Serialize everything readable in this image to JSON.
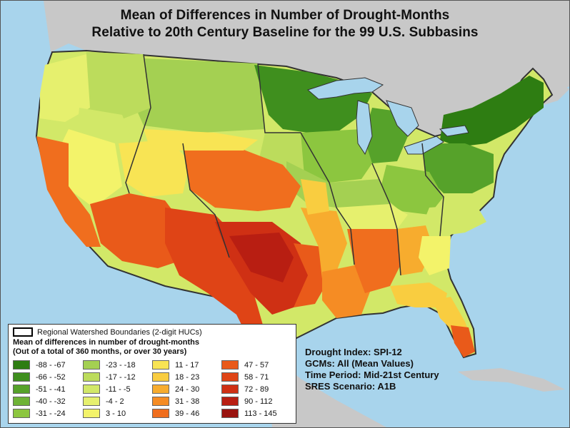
{
  "title_line1": "Mean of Differences in Number of Drought-Months",
  "title_line2": "Relative to 20th Century Baseline for the 99 U.S. Subbasins",
  "legend": {
    "boundary_label": "Regional Watershed Boundaries (2-digit HUCs)",
    "heading1": "Mean of differences in number of drought-months",
    "heading2": "(Out of a total of 360 months, or over 30 years)",
    "classes": [
      {
        "label": "-88 - -67",
        "color": "#2e7d12"
      },
      {
        "label": "-66 - -52",
        "color": "#3f8f1e"
      },
      {
        "label": "-51 - -41",
        "color": "#56a22a"
      },
      {
        "label": "-40 - -32",
        "color": "#6fb337"
      },
      {
        "label": "-31 - -24",
        "color": "#8cc63f"
      },
      {
        "label": "-23 - -18",
        "color": "#a4d052"
      },
      {
        "label": "-17 - -12",
        "color": "#bcdc5c"
      },
      {
        "label": "-11 - -5",
        "color": "#d2e868"
      },
      {
        "label": "-4 - 2",
        "color": "#e6f06e"
      },
      {
        "label": "3 - 10",
        "color": "#f3f36a"
      },
      {
        "label": "11 - 17",
        "color": "#f8e454"
      },
      {
        "label": "18 - 23",
        "color": "#f9cd40"
      },
      {
        "label": "24 - 30",
        "color": "#f7ac2e"
      },
      {
        "label": "31 - 38",
        "color": "#f58c24"
      },
      {
        "label": "39 - 46",
        "color": "#f06e1e"
      },
      {
        "label": "47 - 57",
        "color": "#e95a1a"
      },
      {
        "label": "58 - 71",
        "color": "#df4416"
      },
      {
        "label": "72 - 89",
        "color": "#cf3014"
      },
      {
        "label": "90 - 112",
        "color": "#b81e12"
      },
      {
        "label": "113 - 145",
        "color": "#9a1410"
      }
    ]
  },
  "info": {
    "drought_index": "Drought Index: SPI-12",
    "gcms": "GCMs: All (Mean Values)",
    "time_period": "Time Period: Mid-21st Century",
    "sres": "SRES Scenario: A1B"
  },
  "colors": {
    "water": "#a8d4ec",
    "land_outside": "#c8c8c8",
    "boundary": "#333333"
  }
}
